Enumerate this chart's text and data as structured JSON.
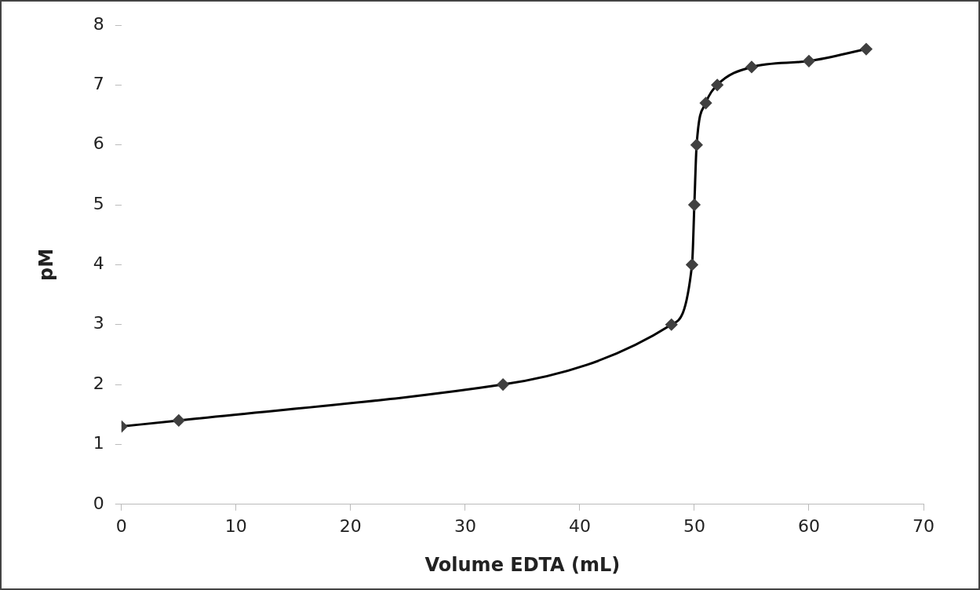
{
  "chart_data": {
    "type": "line",
    "xlabel": "Volume EDTA (mL)",
    "ylabel": "pM",
    "x": [
      0,
      5,
      33.3,
      48,
      49.8,
      50,
      50.2,
      51,
      52,
      55,
      60,
      65
    ],
    "series": [
      {
        "color": "#000000",
        "values": [
          1.3,
          1.4,
          2,
          3,
          4,
          5,
          6,
          6.7,
          7,
          7.3,
          7.4,
          7.6
        ]
      }
    ],
    "xlim": [
      0,
      70
    ],
    "xticks": [
      0,
      10,
      20,
      30,
      40,
      50,
      60,
      70
    ],
    "ylim": [
      0,
      8
    ],
    "yticks": [
      0,
      1,
      2,
      3,
      4,
      5,
      6,
      7,
      8
    ],
    "grid": false,
    "legend": false,
    "marker": "diamond",
    "line_style": "solid"
  }
}
